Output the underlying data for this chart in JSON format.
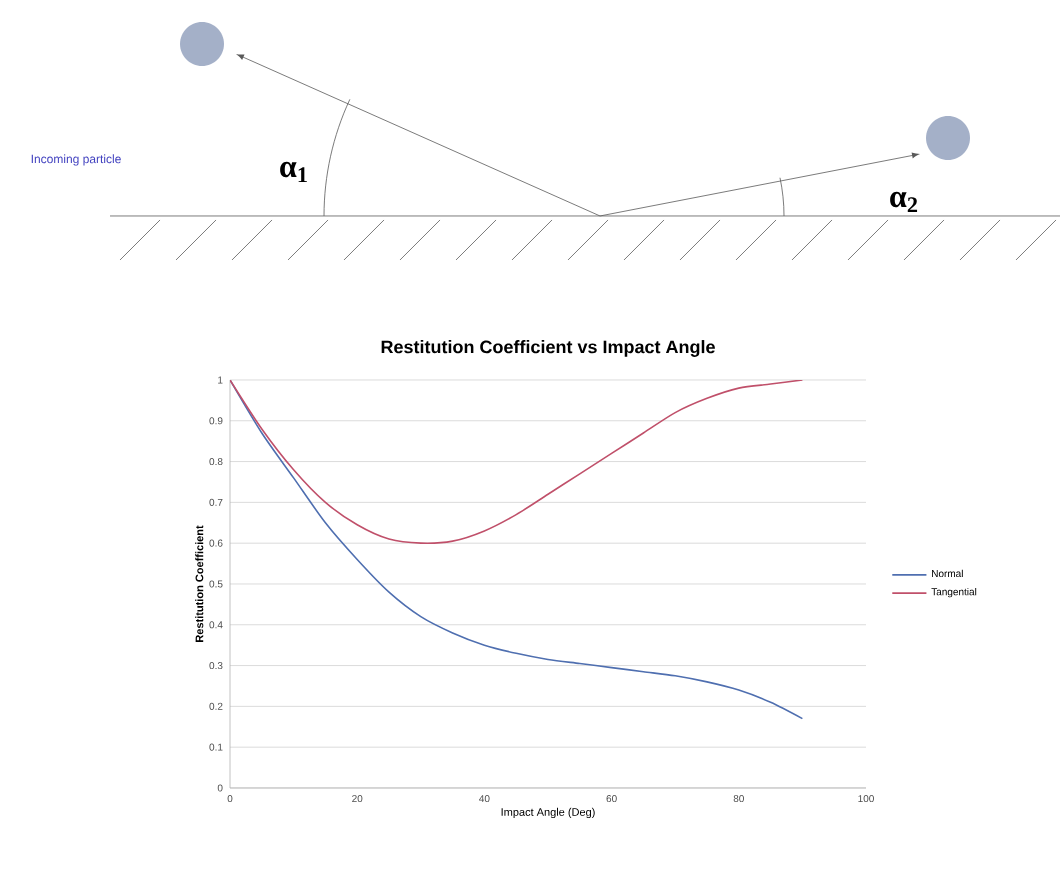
{
  "chart_data": {
    "type": "line",
    "title": "Restitution Coefficient vs Impact Angle",
    "xlabel": "Impact Angle (Deg)",
    "ylabel": "Restitution Coefficient",
    "x": [
      0,
      5,
      10,
      15,
      20,
      25,
      30,
      35,
      40,
      45,
      50,
      55,
      60,
      65,
      70,
      75,
      80,
      85,
      90
    ],
    "series": [
      {
        "name": "Normal",
        "color": "#4f6fb0",
        "values": [
          1,
          0.87,
          0.76,
          0.65,
          0.56,
          0.48,
          0.42,
          0.38,
          0.35,
          0.33,
          0.315,
          0.305,
          0.295,
          0.285,
          0.275,
          0.26,
          0.24,
          0.21,
          0.17
        ]
      },
      {
        "name": "Tangential",
        "color": "#c0506a",
        "values": [
          1,
          0.88,
          0.78,
          0.7,
          0.645,
          0.61,
          0.6,
          0.605,
          0.63,
          0.67,
          0.72,
          0.77,
          0.82,
          0.87,
          0.92,
          0.955,
          0.98,
          0.99,
          1
        ]
      }
    ],
    "xlim": [
      0,
      100
    ],
    "ylim": [
      0,
      1
    ],
    "xticks": [
      0,
      20,
      40,
      60,
      80,
      100
    ],
    "yticks": [
      0,
      0.1,
      0.2,
      0.3,
      0.4,
      0.5,
      0.6,
      0.7,
      0.8,
      0.9,
      1
    ],
    "grid": "y",
    "legend": "right",
    "annotations": [
      "Incoming particle",
      "α$_{1}$",
      "α$_{2}$"
    ]
  }
}
